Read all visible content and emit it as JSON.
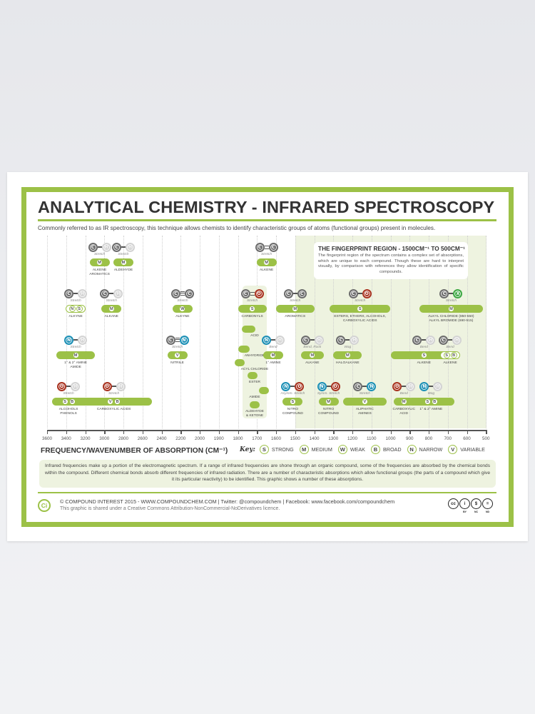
{
  "poster": {
    "title": "ANALYTICAL CHEMISTRY - INFRARED SPECTROSCOPY",
    "subtitle": "Commonly referred to as IR spectroscopy, this technique allows chemists to identify characteristic groups of atoms (functional groups) present in molecules.",
    "fingerprint": {
      "title": "THE FINGERPRINT REGION - 1500CM⁻¹ TO 500CM⁻¹",
      "text": "The fingerprint region of the spectrum contains a complex set of absorptions, which are unique to each compound. Though these are hard to interpret visually, by comparison with references they allow identification of specific compounds."
    },
    "axis": {
      "title": "FREQUENCY/WAVENUMBER OF ABSORPTION (CM⁻¹)",
      "ticks": [
        "3600",
        "3400",
        "3200",
        "3000",
        "2800",
        "2600",
        "2400",
        "2200",
        "2000",
        "1900",
        "1800",
        "1700",
        "1600",
        "1500",
        "1400",
        "1300",
        "1200",
        "1100",
        "1000",
        "900",
        "800",
        "700",
        "600",
        "500"
      ]
    },
    "key": {
      "title": "Key:",
      "items": [
        {
          "letter": "S",
          "label": "STRONG"
        },
        {
          "letter": "M",
          "label": "MEDIUM"
        },
        {
          "letter": "W",
          "label": "WEAK"
        },
        {
          "letter": "B",
          "label": "BROAD"
        },
        {
          "letter": "N",
          "label": "NARROW"
        },
        {
          "letter": "V",
          "label": "VARIABLE"
        }
      ]
    },
    "info": "Infrared frequencies make up a portion of the electromagnetic spectrum. If a range of infrared frequencies are shone through an organic compound, some of the frequencies are absorbed by the chemical bonds within the compound. Different chemical bonds absorb different frequencies of infrared radiation. There are a number of characteristic absorptions which allow functional groups (the parts of a compound which give it its particular reactivity) to be identified. This graphic shows a number of these absorptions.",
    "footer": {
      "logo": "Ci",
      "credits": "© COMPOUND INTEREST 2015 - WWW.COMPOUNDCHEM.COM | Twitter: @compoundchem | Facebook: www.facebook.com/compoundchem",
      "license": "This graphic is shared under a Creative Commons Attribution-NonCommercial-NoDerivatives licence.",
      "cc_icons": [
        {
          "glyph": "cc",
          "sub": ""
        },
        {
          "glyph": "i",
          "sub": "BY"
        },
        {
          "glyph": "$",
          "sub": "NC"
        },
        {
          "glyph": "=",
          "sub": "ND"
        }
      ]
    },
    "carbonyl_subgroups": [
      {
        "label": "ACID"
      },
      {
        "label": "ANHYDRIDE"
      },
      {
        "label": "ACYL CHLORIDE"
      },
      {
        "label": "ESTER"
      },
      {
        "label": "AMIDE"
      },
      {
        "label": "ALDEHYDE & KETONE"
      }
    ]
  },
  "chart_data": {
    "type": "range-diagram",
    "title": "ANALYTICAL CHEMISTRY - INFRARED SPECTROSCOPY",
    "xlabel": "FREQUENCY/WAVENUMBER OF ABSORPTION (CM-1)",
    "xlim": [
      3600,
      500
    ],
    "x_ticks": [
      3600,
      3400,
      3200,
      3000,
      2800,
      2600,
      2400,
      2200,
      2000,
      1900,
      1800,
      1700,
      1600,
      1500,
      1400,
      1300,
      1200,
      1100,
      1000,
      900,
      800,
      700,
      600,
      500
    ],
    "highlight_region": {
      "label": "Fingerprint region",
      "range": [
        1500,
        500
      ]
    },
    "absorptions": [
      {
        "row": 1,
        "bond": "C-H",
        "vibration": "Stretch",
        "intensity": [
          "M"
        ],
        "group": "ALKENE AROMATICS",
        "range": [
          3100,
          3000
        ]
      },
      {
        "row": 1,
        "bond": "C-H",
        "vibration": "Stretch",
        "intensity": [
          "M"
        ],
        "group": "ALDEHYDE",
        "range": [
          2850,
          2750
        ]
      },
      {
        "row": 1,
        "bond": "C=C",
        "vibration": "Stretch",
        "intensity": [
          "M"
        ],
        "group": "ALKENE",
        "range": [
          1680,
          1620
        ]
      },
      {
        "row": 2,
        "bond": "C-H",
        "vibration": "Stretch",
        "intensity": [
          "N",
          "S"
        ],
        "group": "ALKYNE",
        "range": [
          3330,
          3270
        ]
      },
      {
        "row": 2,
        "bond": "C-H",
        "vibration": "Stretch",
        "intensity": [
          "M"
        ],
        "group": "ALKANE",
        "range": [
          3000,
          2850
        ]
      },
      {
        "row": 2,
        "bond": "C≡C",
        "vibration": "Stretch",
        "intensity": [
          "W"
        ],
        "group": "ALKYNE",
        "range": [
          2260,
          2100
        ]
      },
      {
        "row": 2,
        "bond": "C=O",
        "vibration": "Stretch",
        "intensity": [
          "S"
        ],
        "group": "CARBONYLS",
        "range": [
          1800,
          1650
        ]
      },
      {
        "row": 2,
        "bond": "C-C",
        "vibration": "Stretch",
        "intensity": [
          "M"
        ],
        "group": "AROMATICS",
        "range": [
          1600,
          1400
        ]
      },
      {
        "row": 2,
        "bond": "C-O",
        "vibration": "Stretch",
        "intensity": [
          "S"
        ],
        "group": "ESTERS, ETHERS, ALCOHOLS, CARBOXYLIC ACIDS",
        "range": [
          1320,
          1000
        ]
      },
      {
        "row": 2,
        "bond": "C-X",
        "vibration": "Stretch",
        "intensity": [
          "M"
        ],
        "group": "ALKYL CHLORIDE (850-550) ALKYL BROMIDE (690-515)",
        "range": [
          850,
          515
        ]
      },
      {
        "row": 3,
        "bond": "N-H",
        "vibration": "Stretch",
        "intensity": [
          "M"
        ],
        "group": "1° & 2° AMINE AMIDE",
        "range": [
          3500,
          3100
        ]
      },
      {
        "row": 3,
        "bond": "C≡N",
        "vibration": "Stretch",
        "intensity": [
          "V"
        ],
        "group": "NITRILE",
        "range": [
          2260,
          2210
        ]
      },
      {
        "row": 3,
        "bond": "N-H",
        "vibration": "Bend",
        "intensity": [
          "M"
        ],
        "group": "1° AMINE",
        "range": [
          1650,
          1580
        ]
      },
      {
        "row": 3,
        "bond": "C-H",
        "vibration": "Bend, Rock",
        "intensity": [
          "M"
        ],
        "group": "ALKANE",
        "range": [
          1470,
          1350
        ]
      },
      {
        "row": 3,
        "bond": "C-H",
        "vibration": "Wag",
        "intensity": [
          "M"
        ],
        "group": "HALOALKANE",
        "range": [
          1300,
          1150
        ]
      },
      {
        "row": 3,
        "bond": "C-H",
        "vibration": "Bend",
        "intensity": [
          "S"
        ],
        "group": "ALKENE",
        "range": [
          1000,
          650
        ]
      },
      {
        "row": 3,
        "bond": "C-H",
        "vibration": "Bend",
        "intensity": [
          "S",
          "B"
        ],
        "group": "ALKENE",
        "range": [
          710,
          665
        ]
      },
      {
        "row": 4,
        "bond": "O-H",
        "vibration": "Stretch",
        "intensity": [
          "S",
          "B"
        ],
        "group": "ALCOHOLS PHENOLS",
        "range": [
          3550,
          3200
        ]
      },
      {
        "row": 4,
        "bond": "O-H",
        "vibration": "Stretch",
        "intensity": [
          "V",
          "B"
        ],
        "group": "CARBOXYLIC ACIDS",
        "range": [
          3300,
          2500
        ]
      },
      {
        "row": 4,
        "bond": "N-O",
        "vibration": "Asymm. Stretch",
        "intensity": [
          "S"
        ],
        "group": "NITRO COMPOUND",
        "range": [
          1550,
          1475
        ]
      },
      {
        "row": 4,
        "bond": "N-O",
        "vibration": "Symm. Stretch",
        "intensity": [
          "M"
        ],
        "group": "NITRO COMPOUND",
        "range": [
          1360,
          1290
        ]
      },
      {
        "row": 4,
        "bond": "C-N",
        "vibration": "Stretch",
        "intensity": [
          "V"
        ],
        "group": "ALIPHATIC AMINES",
        "range": [
          1250,
          1020
        ]
      },
      {
        "row": 4,
        "bond": "O-H",
        "vibration": "Bend",
        "intensity": [
          "M"
        ],
        "group": "CARBOXYLIC ACID",
        "range": [
          950,
          910
        ]
      },
      {
        "row": 4,
        "bond": "N-H",
        "vibration": "Wag",
        "intensity": [
          "S",
          "B"
        ],
        "group": "1° & 2° AMINE",
        "range": [
          910,
          665
        ]
      }
    ],
    "carbonyl_subranges": [
      {
        "label": "ACID",
        "range": [
          1780,
          1710
        ]
      },
      {
        "label": "ANHYDRIDE",
        "range": [
          1800,
          1740
        ]
      },
      {
        "label": "ACYL CHLORIDE",
        "range": [
          1815,
          1785
        ]
      },
      {
        "label": "ESTER",
        "range": [
          1750,
          1730
        ]
      },
      {
        "label": "AMIDE",
        "range": [
          1690,
          1640
        ]
      },
      {
        "label": "ALDEHYDE & KETONE",
        "range": [
          1740,
          1690
        ]
      }
    ],
    "legend": [
      {
        "letter": "S",
        "label": "STRONG"
      },
      {
        "letter": "M",
        "label": "MEDIUM"
      },
      {
        "letter": "W",
        "label": "WEAK"
      },
      {
        "letter": "B",
        "label": "BROAD"
      },
      {
        "letter": "N",
        "label": "NARROW"
      },
      {
        "letter": "V",
        "label": "VARIABLE"
      }
    ],
    "colors": {
      "accent": "#9cc147",
      "fingerprint_bg": "#eef3e0",
      "carbon": "#6c6c6c",
      "hydrogen": "#d3d3d3",
      "oxygen": "#a8321f",
      "nitrogen": "#1b8fb5",
      "halogen": "#3da843"
    }
  }
}
